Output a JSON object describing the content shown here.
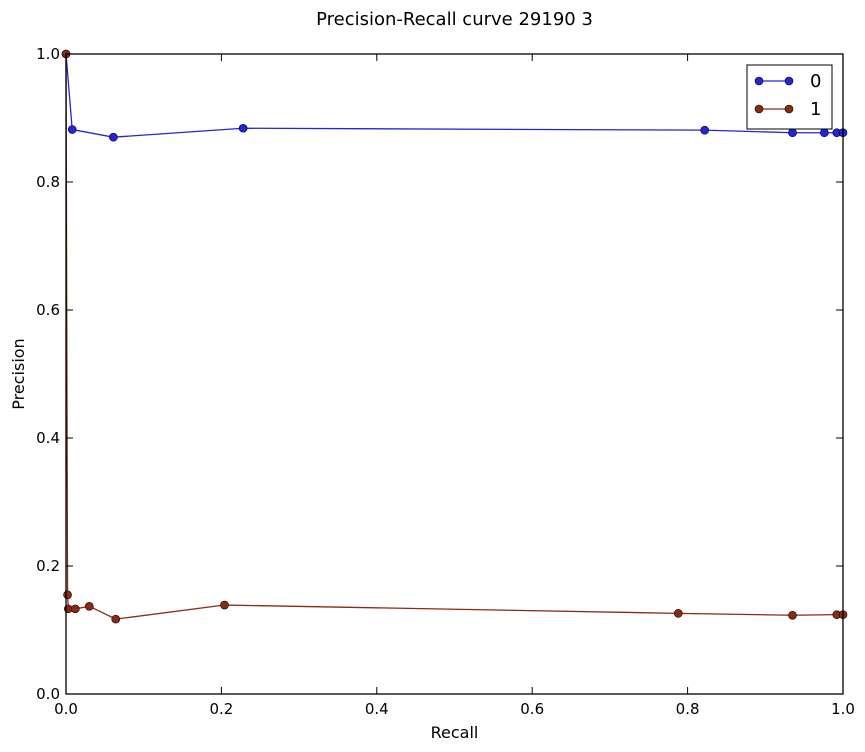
{
  "chart_data": {
    "type": "line",
    "title": "Precision-Recall curve 29190 3",
    "xlabel": "Recall",
    "ylabel": "Precision",
    "xlim": [
      0.0,
      1.0
    ],
    "ylim": [
      0.0,
      1.0
    ],
    "xticks": [
      "0.0",
      "0.2",
      "0.4",
      "0.6",
      "0.8",
      "1.0"
    ],
    "yticks": [
      "0.0",
      "0.2",
      "0.4",
      "0.6",
      "0.8",
      "1.0"
    ],
    "grid": false,
    "legend_position": "top-right",
    "series": [
      {
        "name": "0",
        "color": "#2424d8",
        "x": [
          0.0,
          0.008,
          0.061,
          0.228,
          0.822,
          0.935,
          0.976,
          0.992,
          1.0
        ],
        "y": [
          1.0,
          0.882,
          0.87,
          0.884,
          0.881,
          0.877,
          0.877,
          0.877,
          0.877
        ]
      },
      {
        "name": "1",
        "color": "#8b2a10",
        "x": [
          0.0,
          0.002,
          0.003,
          0.012,
          0.03,
          0.064,
          0.204,
          0.788,
          0.935,
          0.992,
          1.0
        ],
        "y": [
          1.0,
          0.155,
          0.133,
          0.133,
          0.137,
          0.117,
          0.139,
          0.126,
          0.123,
          0.124,
          0.124
        ]
      }
    ]
  }
}
